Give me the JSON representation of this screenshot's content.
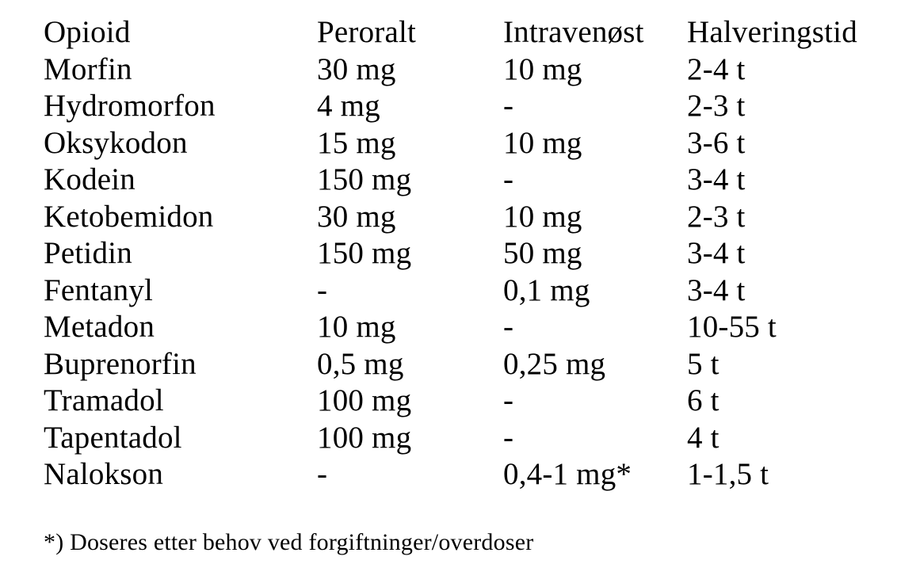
{
  "page": {
    "background_color": "#ffffff",
    "text_color": "#000000"
  },
  "table": {
    "columns": [
      "Opioid",
      "Peroralt",
      "Intravenøst",
      "Halveringstid"
    ],
    "rows": [
      [
        "Morfin",
        "30 mg",
        "10 mg",
        "2-4 t"
      ],
      [
        "Hydromorfon",
        "4 mg",
        "-",
        "2-3 t"
      ],
      [
        "Oksykodon",
        "15 mg",
        "10 mg",
        "3-6 t"
      ],
      [
        "Kodein",
        "150 mg",
        "-",
        "3-4 t"
      ],
      [
        "Ketobemidon",
        "30 mg",
        "10 mg",
        "2-3 t"
      ],
      [
        "Petidin",
        "150 mg",
        "50 mg",
        "3-4 t"
      ],
      [
        "Fentanyl",
        "-",
        "0,1 mg",
        "3-4 t"
      ],
      [
        "Metadon",
        "10 mg",
        "-",
        "10-55 t"
      ],
      [
        "Buprenorfin",
        "0,5 mg",
        "0,25 mg",
        "5 t"
      ],
      [
        "Tramadol",
        "100 mg",
        "-",
        "6 t"
      ],
      [
        "Tapentadol",
        "100 mg",
        "-",
        "4 t"
      ],
      [
        "Nalokson",
        "-",
        "0,4-1 mg*",
        "1-1,5 t"
      ]
    ]
  },
  "footnote": "*) Doseres etter behov ved forgiftninger/overdoser"
}
